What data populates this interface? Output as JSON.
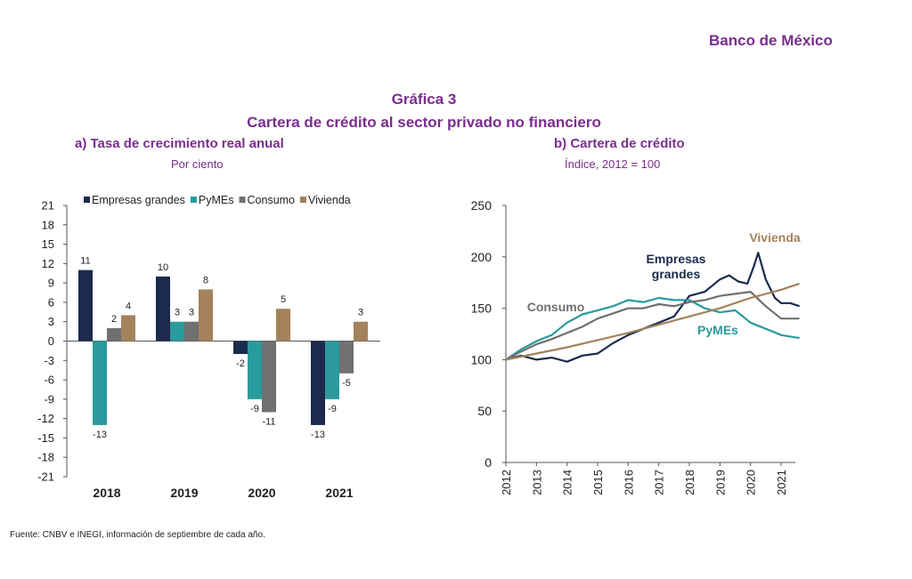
{
  "header": {
    "brand": "Banco de México",
    "figure_number": "Gráfica 3",
    "figure_title": "Cartera de crédito al sector privado no financiero"
  },
  "footer": {
    "source": "Fuente: CNBV e INEGI, información de septiembre de cada año."
  },
  "colors": {
    "empresas": "#1c2a4d",
    "pymes": "#2a9a9c",
    "consumo": "#707070",
    "vivienda": "#a3825c"
  },
  "chart_data": [
    {
      "type": "bar",
      "title": "a) Tasa de crecimiento real anual",
      "subtitle": "Por ciento",
      "categories": [
        "2018",
        "2019",
        "2020",
        "2021"
      ],
      "series": [
        {
          "name": "Empresas grandes",
          "values": [
            11,
            10,
            -2,
            -13
          ]
        },
        {
          "name": "PyMEs",
          "values": [
            -13,
            3,
            -9,
            -9
          ]
        },
        {
          "name": "Consumo",
          "values": [
            2,
            3,
            -11,
            -5
          ]
        },
        {
          "name": "Vivienda",
          "values": [
            4,
            8,
            5,
            3
          ]
        }
      ],
      "data_labels": [
        [
          "11",
          "-13",
          "2",
          "4"
        ],
        [
          "10",
          "3",
          "3",
          "8"
        ],
        [
          "-2",
          "-9",
          "-11",
          "5"
        ],
        [
          "-13",
          "-9",
          "-5",
          "3"
        ]
      ],
      "ylim": [
        -21,
        21
      ],
      "yticks": [
        21,
        18,
        15,
        12,
        9,
        6,
        3,
        0,
        -3,
        -6,
        -9,
        -12,
        -15,
        -18,
        -21
      ],
      "legend": "top",
      "grid": false
    },
    {
      "type": "line",
      "title": "b) Cartera de crédito",
      "subtitle": "Índice, 2012 = 100",
      "xticks": [
        "2012",
        "2013",
        "2014",
        "2015",
        "2016",
        "2017",
        "2018",
        "2019",
        "2020",
        "2021"
      ],
      "ylim": [
        0,
        250
      ],
      "yticks": [
        0,
        50,
        100,
        150,
        200,
        250
      ],
      "series": [
        {
          "name": "Empresas grandes",
          "label": "Empresas grandes",
          "x": [
            2012,
            2012.5,
            2013,
            2013.5,
            2014,
            2014.5,
            2015,
            2015.5,
            2016,
            2016.5,
            2017,
            2017.5,
            2018,
            2018.5,
            2019,
            2019.3,
            2019.6,
            2019.9,
            2020.1,
            2020.25,
            2020.5,
            2020.8,
            2021,
            2021.3,
            2021.6
          ],
          "y": [
            100,
            104,
            100,
            102,
            98,
            104,
            106,
            116,
            124,
            130,
            136,
            142,
            162,
            166,
            178,
            182,
            176,
            174,
            190,
            204,
            178,
            160,
            155,
            155,
            152
          ]
        },
        {
          "name": "PyMEs",
          "label": "PyMEs",
          "x": [
            2012,
            2012.5,
            2013,
            2013.5,
            2014,
            2014.5,
            2015,
            2015.5,
            2016,
            2016.5,
            2017,
            2017.5,
            2018,
            2018.5,
            2019,
            2019.5,
            2020,
            2020.5,
            2021,
            2021.6
          ],
          "y": [
            100,
            110,
            118,
            124,
            136,
            144,
            148,
            152,
            158,
            156,
            160,
            158,
            158,
            150,
            146,
            148,
            136,
            130,
            124,
            121
          ]
        },
        {
          "name": "Consumo",
          "label": "Consumo",
          "x": [
            2012,
            2012.5,
            2013,
            2013.5,
            2014,
            2014.5,
            2015,
            2015.5,
            2016,
            2016.5,
            2017,
            2017.5,
            2018,
            2018.5,
            2019,
            2019.5,
            2020,
            2020.5,
            2021,
            2021.6
          ],
          "y": [
            100,
            108,
            115,
            120,
            126,
            132,
            140,
            145,
            150,
            150,
            154,
            152,
            156,
            158,
            162,
            164,
            166,
            152,
            140,
            140
          ]
        },
        {
          "name": "Vivienda",
          "label": "Vivienda",
          "x": [
            2012,
            2013,
            2014,
            2015,
            2016,
            2017,
            2018,
            2019,
            2020,
            2021,
            2021.6
          ],
          "y": [
            100,
            106,
            112,
            119,
            126,
            134,
            142,
            150,
            160,
            168,
            174
          ]
        }
      ],
      "legend": "inline labels",
      "grid": false
    }
  ]
}
